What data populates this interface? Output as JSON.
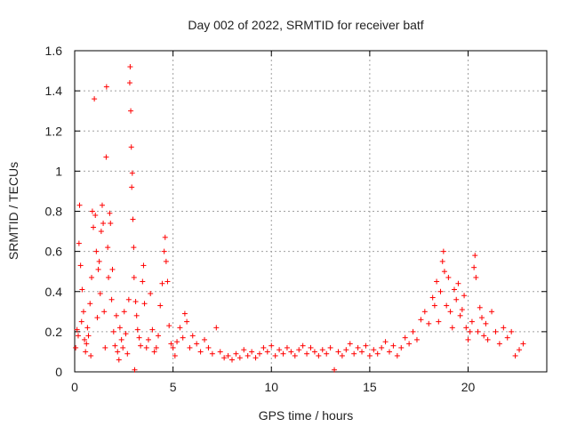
{
  "chart_data": {
    "type": "scatter",
    "title": "Day 002 of 2022, SRMTID for receiver batf",
    "xlabel": "GPS time / hours",
    "ylabel": "SRMTID / TECUs",
    "xlim": [
      0,
      24
    ],
    "ylim": [
      0,
      1.6
    ],
    "xticks": [
      0,
      5,
      10,
      15,
      20
    ],
    "yticks": [
      0,
      0.2,
      0.4,
      0.6,
      0.8,
      1,
      1.2,
      1.4,
      1.6
    ],
    "grid": true,
    "marker": "+",
    "color": "#ff0000",
    "series": [
      {
        "name": "SRMTID",
        "points": [
          [
            0.05,
            0.12
          ],
          [
            0.12,
            0.21
          ],
          [
            0.18,
            0.18
          ],
          [
            0.22,
            0.64
          ],
          [
            0.25,
            0.83
          ],
          [
            0.3,
            0.53
          ],
          [
            0.35,
            0.25
          ],
          [
            0.38,
            0.41
          ],
          [
            0.45,
            0.3
          ],
          [
            0.5,
            0.16
          ],
          [
            0.55,
            0.1
          ],
          [
            0.6,
            0.14
          ],
          [
            0.65,
            0.22
          ],
          [
            0.7,
            0.18
          ],
          [
            0.78,
            0.34
          ],
          [
            0.82,
            0.08
          ],
          [
            0.86,
            0.47
          ],
          [
            0.9,
            0.8
          ],
          [
            0.95,
            0.72
          ],
          [
            1.0,
            1.36
          ],
          [
            1.05,
            0.78
          ],
          [
            1.1,
            0.6
          ],
          [
            1.15,
            0.27
          ],
          [
            1.2,
            0.51
          ],
          [
            1.25,
            0.55
          ],
          [
            1.3,
            0.39
          ],
          [
            1.35,
            0.7
          ],
          [
            1.4,
            0.83
          ],
          [
            1.45,
            0.74
          ],
          [
            1.5,
            0.3
          ],
          [
            1.55,
            0.12
          ],
          [
            1.6,
            1.07
          ],
          [
            1.62,
            1.42
          ],
          [
            1.68,
            0.62
          ],
          [
            1.72,
            0.47
          ],
          [
            1.78,
            0.79
          ],
          [
            1.82,
            0.74
          ],
          [
            1.88,
            0.36
          ],
          [
            1.92,
            0.51
          ],
          [
            1.98,
            0.2
          ],
          [
            2.05,
            0.13
          ],
          [
            2.12,
            0.28
          ],
          [
            2.18,
            0.1
          ],
          [
            2.25,
            0.06
          ],
          [
            2.3,
            0.22
          ],
          [
            2.38,
            0.16
          ],
          [
            2.45,
            0.12
          ],
          [
            2.52,
            0.3
          ],
          [
            2.6,
            0.19
          ],
          [
            2.68,
            0.09
          ],
          [
            2.75,
            0.36
          ],
          [
            2.8,
            1.44
          ],
          [
            2.82,
            1.52
          ],
          [
            2.85,
            1.3
          ],
          [
            2.88,
            1.12
          ],
          [
            2.9,
            0.92
          ],
          [
            2.93,
            0.99
          ],
          [
            2.96,
            0.76
          ],
          [
            3.0,
            0.62
          ],
          [
            3.02,
            0.47
          ],
          [
            3.05,
            0.01
          ],
          [
            3.1,
            0.35
          ],
          [
            3.15,
            0.28
          ],
          [
            3.2,
            0.21
          ],
          [
            3.28,
            0.17
          ],
          [
            3.35,
            0.13
          ],
          [
            3.45,
            0.45
          ],
          [
            3.5,
            0.53
          ],
          [
            3.55,
            0.34
          ],
          [
            3.65,
            0.12
          ],
          [
            3.75,
            0.16
          ],
          [
            3.85,
            0.39
          ],
          [
            3.95,
            0.21
          ],
          [
            4.05,
            0.1
          ],
          [
            4.15,
            0.12
          ],
          [
            4.25,
            0.18
          ],
          [
            4.35,
            0.33
          ],
          [
            4.45,
            0.44
          ],
          [
            4.55,
            0.6
          ],
          [
            4.6,
            0.67
          ],
          [
            4.65,
            0.55
          ],
          [
            4.72,
            0.45
          ],
          [
            4.8,
            0.23
          ],
          [
            4.9,
            0.14
          ],
          [
            5.0,
            0.12
          ],
          [
            5.1,
            0.08
          ],
          [
            5.2,
            0.15
          ],
          [
            5.35,
            0.22
          ],
          [
            5.5,
            0.17
          ],
          [
            5.6,
            0.29
          ],
          [
            5.7,
            0.25
          ],
          [
            5.85,
            0.12
          ],
          [
            6.0,
            0.18
          ],
          [
            6.2,
            0.14
          ],
          [
            6.4,
            0.1
          ],
          [
            6.6,
            0.16
          ],
          [
            6.8,
            0.12
          ],
          [
            7.0,
            0.09
          ],
          [
            7.2,
            0.22
          ],
          [
            7.4,
            0.1
          ],
          [
            7.6,
            0.07
          ],
          [
            7.8,
            0.08
          ],
          [
            8.0,
            0.06
          ],
          [
            8.2,
            0.09
          ],
          [
            8.4,
            0.07
          ],
          [
            8.6,
            0.11
          ],
          [
            8.8,
            0.08
          ],
          [
            9.0,
            0.1
          ],
          [
            9.2,
            0.07
          ],
          [
            9.4,
            0.09
          ],
          [
            9.6,
            0.12
          ],
          [
            9.8,
            0.1
          ],
          [
            10.0,
            0.13
          ],
          [
            10.2,
            0.08
          ],
          [
            10.4,
            0.11
          ],
          [
            10.6,
            0.09
          ],
          [
            10.8,
            0.12
          ],
          [
            11.0,
            0.1
          ],
          [
            11.2,
            0.08
          ],
          [
            11.4,
            0.11
          ],
          [
            11.6,
            0.13
          ],
          [
            11.8,
            0.09
          ],
          [
            12.0,
            0.12
          ],
          [
            12.2,
            0.1
          ],
          [
            12.4,
            0.08
          ],
          [
            12.6,
            0.11
          ],
          [
            12.8,
            0.09
          ],
          [
            13.0,
            0.12
          ],
          [
            13.2,
            0.01
          ],
          [
            13.4,
            0.1
          ],
          [
            13.6,
            0.08
          ],
          [
            13.8,
            0.11
          ],
          [
            14.0,
            0.14
          ],
          [
            14.2,
            0.09
          ],
          [
            14.4,
            0.12
          ],
          [
            14.6,
            0.1
          ],
          [
            14.8,
            0.13
          ],
          [
            15.0,
            0.08
          ],
          [
            15.2,
            0.11
          ],
          [
            15.4,
            0.09
          ],
          [
            15.6,
            0.12
          ],
          [
            15.8,
            0.15
          ],
          [
            16.0,
            0.1
          ],
          [
            16.2,
            0.13
          ],
          [
            16.4,
            0.08
          ],
          [
            16.6,
            0.12
          ],
          [
            16.8,
            0.17
          ],
          [
            17.0,
            0.14
          ],
          [
            17.2,
            0.2
          ],
          [
            17.4,
            0.16
          ],
          [
            17.6,
            0.26
          ],
          [
            17.8,
            0.3
          ],
          [
            18.0,
            0.24
          ],
          [
            18.2,
            0.37
          ],
          [
            18.3,
            0.33
          ],
          [
            18.4,
            0.45
          ],
          [
            18.5,
            0.25
          ],
          [
            18.6,
            0.4
          ],
          [
            18.7,
            0.55
          ],
          [
            18.75,
            0.6
          ],
          [
            18.8,
            0.5
          ],
          [
            18.9,
            0.33
          ],
          [
            19.0,
            0.47
          ],
          [
            19.1,
            0.3
          ],
          [
            19.2,
            0.22
          ],
          [
            19.3,
            0.41
          ],
          [
            19.4,
            0.36
          ],
          [
            19.5,
            0.44
          ],
          [
            19.6,
            0.28
          ],
          [
            19.7,
            0.31
          ],
          [
            19.8,
            0.38
          ],
          [
            19.9,
            0.22
          ],
          [
            20.0,
            0.16
          ],
          [
            20.1,
            0.2
          ],
          [
            20.2,
            0.25
          ],
          [
            20.3,
            0.52
          ],
          [
            20.35,
            0.58
          ],
          [
            20.4,
            0.47
          ],
          [
            20.5,
            0.2
          ],
          [
            20.6,
            0.32
          ],
          [
            20.7,
            0.27
          ],
          [
            20.8,
            0.18
          ],
          [
            20.9,
            0.24
          ],
          [
            21.0,
            0.16
          ],
          [
            21.2,
            0.3
          ],
          [
            21.4,
            0.2
          ],
          [
            21.6,
            0.14
          ],
          [
            21.8,
            0.22
          ],
          [
            22.0,
            0.17
          ],
          [
            22.2,
            0.2
          ],
          [
            22.4,
            0.08
          ],
          [
            22.6,
            0.11
          ],
          [
            22.8,
            0.14
          ]
        ]
      }
    ]
  }
}
